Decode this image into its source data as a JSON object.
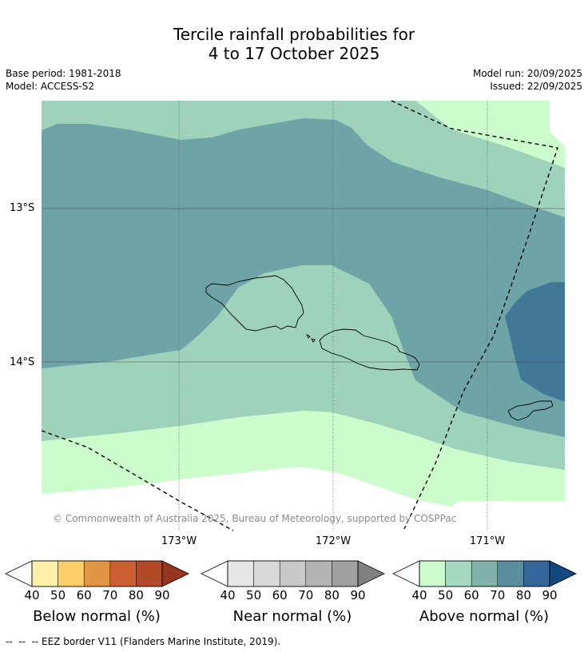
{
  "title": {
    "line1": "Tercile rainfall probabilities for",
    "line2": "4 to 17 October 2025"
  },
  "meta": {
    "base_period": "Base period: 1981-2018",
    "model": "Model: ACCESS-S2",
    "model_run": "Model run: 20/09/2025",
    "issued": "Issued: 22/09/2025"
  },
  "map": {
    "copyright": "© Commonwealth of Australia 2025, Bureau of Meteorology, supported by COSPPac",
    "lat_labels": [
      "13°S",
      "14°S"
    ],
    "lon_labels": [
      "173°W",
      "172°W",
      "171°W"
    ],
    "colors": {
      "above_40_50": "#ccfccc",
      "above_50_60": "#9ed2ba",
      "above_60_70": "#6ea4a8",
      "above_70_80": "#427897",
      "land_outline": "#000000",
      "eez_border": "#000000"
    }
  },
  "colorbars": [
    {
      "name": "below",
      "label": "Below normal (%)",
      "ticks": [
        "40",
        "50",
        "60",
        "70",
        "80",
        "90"
      ],
      "colors": [
        "#fff0a8",
        "#fdcd67",
        "#e39546",
        "#cc5f31",
        "#b24a27",
        "#97361f"
      ]
    },
    {
      "name": "near",
      "label": "Near normal (%)",
      "ticks": [
        "40",
        "50",
        "60",
        "70",
        "80",
        "90"
      ],
      "colors": [
        "#e6e6e6",
        "#d9d9d9",
        "#c8c8c8",
        "#b4b4b4",
        "#a0a0a0",
        "#808080"
      ]
    },
    {
      "name": "above",
      "label": "Above normal (%)",
      "ticks": [
        "40",
        "50",
        "60",
        "70",
        "80",
        "90"
      ],
      "colors": [
        "#ccfccc",
        "#a3d9bd",
        "#80b3aa",
        "#5b8fa0",
        "#34669a",
        "#12487d"
      ]
    }
  ],
  "footnote": "--  --  -- EEZ border V11 (Flanders Marine Institute, 2019)."
}
